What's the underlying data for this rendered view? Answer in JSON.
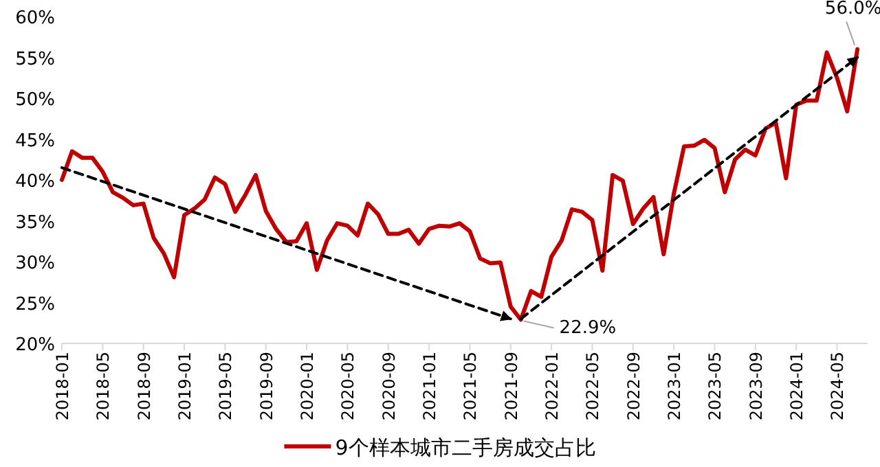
{
  "chart_data": {
    "type": "line",
    "x": [
      "2018-01",
      "2018-02",
      "2018-03",
      "2018-04",
      "2018-05",
      "2018-06",
      "2018-07",
      "2018-08",
      "2018-09",
      "2018-10",
      "2018-11",
      "2018-12",
      "2019-01",
      "2019-02",
      "2019-03",
      "2019-04",
      "2019-05",
      "2019-06",
      "2019-07",
      "2019-08",
      "2019-09",
      "2019-10",
      "2019-11",
      "2019-12",
      "2020-01",
      "2020-02",
      "2020-03",
      "2020-04",
      "2020-05",
      "2020-06",
      "2020-07",
      "2020-08",
      "2020-09",
      "2020-10",
      "2020-11",
      "2020-12",
      "2021-01",
      "2021-02",
      "2021-03",
      "2021-04",
      "2021-05",
      "2021-06",
      "2021-07",
      "2021-08",
      "2021-09",
      "2021-10",
      "2021-11",
      "2021-12",
      "2022-01",
      "2022-02",
      "2022-03",
      "2022-04",
      "2022-05",
      "2022-06",
      "2022-07",
      "2022-08",
      "2022-09",
      "2022-10",
      "2022-11",
      "2022-12",
      "2023-01",
      "2023-02",
      "2023-03",
      "2023-04",
      "2023-05",
      "2023-06",
      "2023-07",
      "2023-08",
      "2023-09",
      "2023-10",
      "2023-11",
      "2023-12",
      "2024-01",
      "2024-02",
      "2024-03",
      "2024-04",
      "2024-05",
      "2024-06",
      "2024-07"
    ],
    "series": [
      {
        "name": "9个样本城市二手房成交占比",
        "color": "#c00000",
        "values": [
          40.0,
          43.5,
          42.7,
          42.7,
          41.0,
          38.5,
          37.8,
          36.9,
          37.1,
          32.9,
          31.0,
          28.1,
          35.7,
          36.5,
          37.6,
          40.3,
          39.5,
          36.1,
          38.2,
          40.6,
          36.2,
          34.0,
          32.4,
          32.5,
          34.7,
          29.0,
          32.6,
          34.7,
          34.4,
          33.2,
          37.1,
          35.8,
          33.4,
          33.4,
          33.9,
          32.2,
          34.0,
          34.4,
          34.3,
          34.7,
          33.7,
          30.4,
          29.8,
          29.9,
          24.5,
          22.9,
          26.4,
          25.7,
          30.6,
          32.6,
          36.4,
          36.1,
          35.1,
          28.9,
          40.6,
          39.9,
          34.6,
          36.5,
          37.9,
          30.9,
          38.3,
          44.1,
          44.2,
          44.9,
          43.9,
          38.5,
          42.5,
          43.7,
          43.0,
          46.3,
          47.0,
          40.2,
          49.2,
          49.7,
          49.7,
          55.6,
          52.5,
          48.4,
          56.0
        ]
      },
      {
        "type": "line",
        "x": [
          "2018-01",
          "2021-09"
        ],
        "values": [
          41.5,
          23.0
        ],
        "color": "#000000",
        "line_style": "dashed"
      },
      {
        "type": "line",
        "x": [
          "2021-10",
          "2024-07"
        ],
        "values": [
          23.0,
          55.0
        ],
        "color": "#000000",
        "line_style": "dashed"
      }
    ],
    "xlim": [
      "2018-01",
      "2024-08"
    ],
    "xticks": [
      {
        "value": "2018-01",
        "label": "2018-01"
      },
      {
        "value": "2018-05",
        "label": "2018-05"
      },
      {
        "value": "2018-09",
        "label": "2018-09"
      },
      {
        "value": "2019-01",
        "label": "2019-01"
      },
      {
        "value": "2019-05",
        "label": "2019-05"
      },
      {
        "value": "2019-09",
        "label": "2019-09"
      },
      {
        "value": "2020-01",
        "label": "2020-01"
      },
      {
        "value": "2020-05",
        "label": "2020-05"
      },
      {
        "value": "2020-09",
        "label": "2020-09"
      },
      {
        "value": "2021-01",
        "label": "2021-01"
      },
      {
        "value": "2021-05",
        "label": "2021-05"
      },
      {
        "value": "2021-09",
        "label": "2021-09"
      },
      {
        "value": "2022-01",
        "label": "2022-01"
      },
      {
        "value": "2022-05",
        "label": "2022-05"
      },
      {
        "value": "2022-09",
        "label": "2022-09"
      },
      {
        "value": "2023-01",
        "label": "2023-01"
      },
      {
        "value": "2023-05",
        "label": "2023-05"
      },
      {
        "value": "2023-09",
        "label": "2023-09"
      },
      {
        "value": "2024-01",
        "label": "2024-01"
      },
      {
        "value": "2024-05",
        "label": "2024-05"
      }
    ],
    "ylim": [
      20,
      60
    ],
    "yticks": [
      {
        "value": 20,
        "label": "20%"
      },
      {
        "value": 25,
        "label": "25%"
      },
      {
        "value": 30,
        "label": "30%"
      },
      {
        "value": 35,
        "label": "35%"
      },
      {
        "value": 40,
        "label": "40%"
      },
      {
        "value": 45,
        "label": "45%"
      },
      {
        "value": 50,
        "label": "50%"
      },
      {
        "value": 55,
        "label": "55%"
      },
      {
        "value": 60,
        "label": "60%"
      }
    ],
    "annotations": [
      {
        "text": "22.9%",
        "x": "2021-10",
        "y": 22.9
      },
      {
        "text": "56.0%",
        "x": "2024-07",
        "y": 56.0
      }
    ],
    "legend": "bottom",
    "marker": "none",
    "line_style": "solid",
    "grid": false
  }
}
